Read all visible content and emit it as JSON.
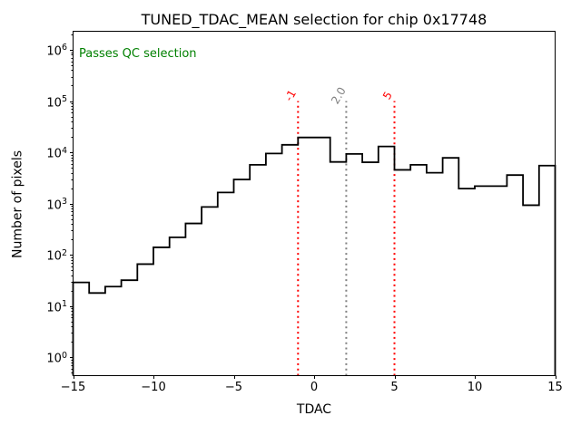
{
  "chart": {
    "title": "TUNED_TDAC_MEAN selection for chip 0x17748",
    "xlabel": "TDAC",
    "ylabel": "Number of pixels",
    "annotation": {
      "text": "Passes QC selection",
      "color": "#008000"
    }
  },
  "chart_data": {
    "type": "bar",
    "subtype": "step-histogram",
    "title": "TUNED_TDAC_MEAN selection for chip 0x17748",
    "xlabel": "TDAC",
    "ylabel": "Number of pixels",
    "line_color": "#000000",
    "y_scale": "log",
    "xlim": [
      -15,
      15
    ],
    "ylim": [
      0.44,
      2300000
    ],
    "grid": false,
    "bin_edges": [
      -15,
      -14,
      -13,
      -12,
      -11,
      -10,
      -9,
      -8,
      -7,
      -6,
      -5,
      -4,
      -3,
      -2,
      -1,
      0,
      1,
      2,
      3,
      4,
      5,
      6,
      7,
      8,
      9,
      10,
      11,
      12,
      13,
      14,
      15
    ],
    "counts": [
      29,
      18,
      24,
      32,
      66,
      140,
      220,
      410,
      860,
      1650,
      2950,
      5700,
      9500,
      14000,
      19500,
      19500,
      6500,
      9300,
      6400,
      13000,
      4550,
      5700,
      4000,
      7800,
      1960,
      2190,
      2190,
      3600,
      930,
      5500
    ],
    "x_ticks": [
      -15,
      -10,
      -5,
      0,
      5,
      10,
      15
    ],
    "x_tick_labels": [
      "−15",
      "−10",
      "−5",
      "0",
      "5",
      "10",
      "15"
    ],
    "y_tick_exponents": [
      0,
      1,
      2,
      3,
      4,
      5,
      6
    ],
    "vlines": [
      {
        "x": -1,
        "label": "-1",
        "color": "#ff0000",
        "top_value": 100000
      },
      {
        "x": 2.0,
        "label": "2.0",
        "color": "#808080",
        "top_value": 100000
      },
      {
        "x": 5,
        "label": "5",
        "color": "#ff0000",
        "top_value": 100000
      }
    ]
  }
}
